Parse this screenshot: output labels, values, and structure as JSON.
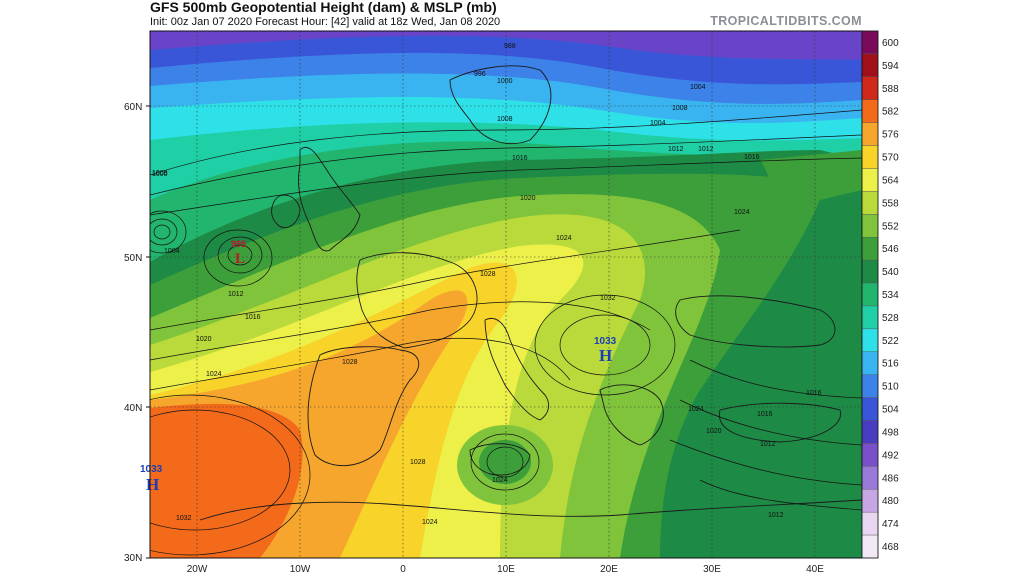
{
  "header": {
    "title": "GFS 500mb Geopotential Height (dam) & MSLP (mb)",
    "subtitle": "Init: 00z Jan 07 2020   Forecast Hour: [42]   valid at 18z Wed, Jan 08 2020",
    "brand": "TROPICALTIDBITS.COM"
  },
  "axes": {
    "lat_labels": [
      "60N",
      "50N",
      "40N",
      "30N"
    ],
    "lon_labels": [
      "20W",
      "10W",
      "0",
      "10E",
      "20E",
      "30E",
      "40E"
    ]
  },
  "colorbar": {
    "levels": [
      "600",
      "594",
      "588",
      "582",
      "576",
      "570",
      "564",
      "558",
      "552",
      "546",
      "540",
      "534",
      "528",
      "522",
      "516",
      "510",
      "504",
      "498",
      "492",
      "486",
      "480",
      "474",
      "468"
    ],
    "colors": [
      "#7a0a5a",
      "#a0101a",
      "#d0281a",
      "#f26a1a",
      "#f6a62c",
      "#f8d32a",
      "#eef04a",
      "#b9da3a",
      "#7fc43a",
      "#3c9f3a",
      "#1d8a46",
      "#22b56e",
      "#1fcfa6",
      "#2ee0e8",
      "#3ab4f0",
      "#3c82e8",
      "#3a56d8",
      "#4a3cc0",
      "#7a50c8",
      "#9a7ad8",
      "#c7a6e6",
      "#e8d6f2",
      "#f2e8f6"
    ]
  },
  "pressure_systems": [
    {
      "type": "H",
      "value": "1033",
      "location": "mid-atlantic"
    },
    {
      "type": "L",
      "value": "995",
      "location": "west-of-ireland"
    },
    {
      "type": "H",
      "value": "1033",
      "location": "balkans"
    }
  ],
  "isobar_labels": [
    "1000",
    "1004",
    "1008",
    "1012",
    "1016",
    "1020",
    "1024",
    "1028",
    "1032",
    "988",
    "996",
    "1000",
    "1004",
    "1008",
    "1012",
    "1016",
    "1020",
    "1024",
    "1028",
    "1032",
    "1016",
    "1012",
    "1008",
    "1004",
    "1024",
    "1020",
    "1016",
    "1012",
    "1024",
    "1028",
    "1024",
    "1016",
    "1012",
    "1024"
  ]
}
